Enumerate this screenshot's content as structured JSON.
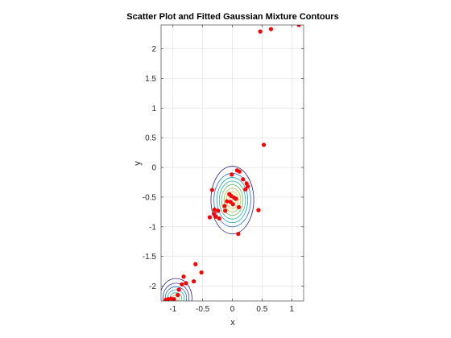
{
  "chart_data": {
    "type": "scatter",
    "title": "Scatter Plot and Fitted Gaussian Mixture Contours",
    "xlabel": "x",
    "ylabel": "y",
    "xlim": [
      -1.2,
      1.2
    ],
    "ylim": [
      -2.25,
      2.4
    ],
    "xticks": [
      -1,
      -0.5,
      0,
      0.5,
      1
    ],
    "yticks": [
      -2,
      -1.5,
      -1,
      -0.5,
      0,
      0.5,
      1,
      1.5,
      2
    ],
    "xtick_labels": [
      "-1",
      "-0.5",
      "0",
      "0.5",
      "1"
    ],
    "ytick_labels": [
      "-2",
      "-1.5",
      "-1",
      "-0.5",
      "0",
      "0.5",
      "1",
      "1.5",
      "2"
    ],
    "grid": true,
    "legend": "none",
    "series": [
      {
        "kind": "points",
        "color": "#ff0000",
        "x": [
          0.47,
          0.65,
          1.12,
          0.53,
          0.08,
          0.12,
          -0.01,
          0.18,
          0.24,
          0.26,
          0.22,
          -0.34,
          -0.05,
          -0.02,
          0.03,
          0.06,
          -0.09,
          0.01,
          -0.13,
          0.11,
          -0.3,
          -0.24,
          -0.12,
          -0.31,
          -0.28,
          -0.22,
          -0.38,
          0.44,
          0.1,
          -0.03,
          -0.62,
          -0.52,
          -0.82,
          -0.78,
          -0.85,
          -0.65,
          -0.9,
          -0.92,
          -1.08,
          -1.03,
          -0.98,
          -1.12
        ],
        "y": [
          2.29,
          2.33,
          2.4,
          0.38,
          -0.05,
          -0.07,
          -0.12,
          -0.2,
          -0.27,
          -0.32,
          -0.37,
          -0.38,
          -0.45,
          -0.48,
          -0.51,
          -0.53,
          -0.57,
          -0.62,
          -0.65,
          -0.67,
          -0.71,
          -0.73,
          -0.73,
          -0.78,
          -0.83,
          -0.86,
          -0.84,
          -0.72,
          -1.12,
          -0.58,
          -1.63,
          -1.77,
          -1.84,
          -1.95,
          -1.97,
          -1.92,
          -2.06,
          -2.15,
          -2.22,
          -2.21,
          -2.22,
          -2.23
        ]
      }
    ],
    "contours": [
      {
        "name": "component-1",
        "center": [
          0.0,
          -0.55
        ],
        "radius_x": [
          0.06,
          0.1,
          0.14,
          0.18,
          0.22,
          0.26,
          0.31,
          0.36
        ],
        "radius_y": [
          0.08,
          0.14,
          0.2,
          0.26,
          0.32,
          0.38,
          0.45,
          0.57
        ],
        "colors": [
          "#f7e43a",
          "#d9c430",
          "#a8c33a",
          "#6bbf61",
          "#2fb5a2",
          "#16a4c4",
          "#1d6fd0",
          "#2a1f8a"
        ]
      },
      {
        "name": "component-2",
        "center": [
          -0.95,
          -2.2
        ],
        "radius_x": [
          0.06,
          0.1,
          0.14,
          0.18,
          0.22,
          0.27
        ],
        "radius_y": [
          0.05,
          0.09,
          0.14,
          0.19,
          0.25,
          0.33
        ],
        "colors": [
          "#a8c33a",
          "#2fb5a2",
          "#16a4c4",
          "#1d6fd0",
          "#2f3fa8",
          "#2a1f8a"
        ]
      }
    ]
  }
}
